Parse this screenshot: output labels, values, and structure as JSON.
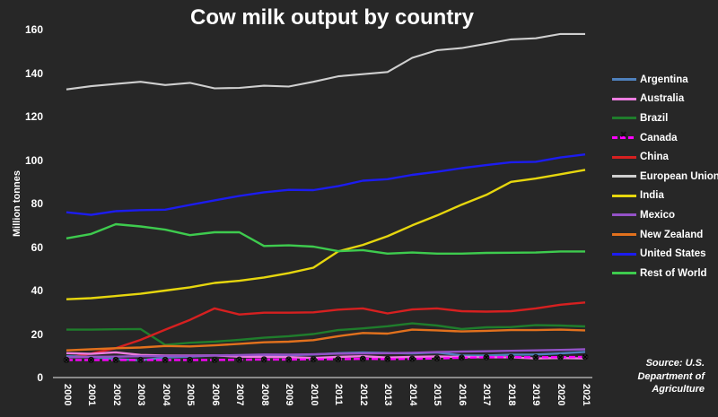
{
  "title": "Cow milk output by country",
  "source": {
    "line1": "Source: U.S.",
    "line2": "Department of",
    "line3": "Agriculture"
  },
  "colors": {
    "background": "#272727",
    "text": "#ffffff",
    "axis_line": "#8a8a8a"
  },
  "chart_data": {
    "type": "line",
    "title": "Cow milk output by country",
    "xlabel": "",
    "ylabel": "Million tonnes",
    "ylim": [
      0,
      160
    ],
    "ytick_step": 20,
    "grid": false,
    "legend_position": "right",
    "x": [
      2000,
      2001,
      2002,
      2003,
      2004,
      2005,
      2006,
      2007,
      2008,
      2009,
      2010,
      2011,
      2012,
      2013,
      2014,
      2015,
      2016,
      2017,
      2018,
      2019,
      2020,
      2021
    ],
    "series": [
      {
        "name": "Argentina",
        "color": "#4f81bd",
        "style": "solid",
        "values": [
          9.8,
          9.5,
          8.5,
          7.9,
          9.2,
          9.6,
          10.2,
          9.6,
          10.0,
          10.3,
          10.6,
          11.2,
          11.5,
          11.3,
          11.1,
          11.5,
          10.2,
          10.1,
          10.5,
          10.6,
          11.1,
          11.8
        ]
      },
      {
        "name": "Australia",
        "color": "#ec7de0",
        "style": "solid",
        "values": [
          11.2,
          10.9,
          11.6,
          10.4,
          10.1,
          10.1,
          10.2,
          9.6,
          9.5,
          9.4,
          9.0,
          9.5,
          9.8,
          9.2,
          9.5,
          9.7,
          9.5,
          9.3,
          9.3,
          8.8,
          9.0,
          8.8
        ]
      },
      {
        "name": "Brazil",
        "color": "#1f7d2c",
        "style": "solid",
        "values": [
          22.0,
          22.0,
          22.2,
          22.3,
          15.0,
          16.0,
          16.5,
          17.3,
          18.3,
          19.0,
          20.0,
          21.8,
          22.6,
          23.6,
          24.9,
          23.9,
          22.3,
          23.1,
          23.2,
          24.1,
          23.9,
          23.5
        ]
      },
      {
        "name": "Canada",
        "color": "#ff00ff",
        "style": "dashed-x",
        "values": [
          8.1,
          8.1,
          8.1,
          8.1,
          8.1,
          8.1,
          8.1,
          8.2,
          8.3,
          8.3,
          8.4,
          8.4,
          8.6,
          8.5,
          8.6,
          8.8,
          9.1,
          9.3,
          9.4,
          9.3,
          9.4,
          9.5
        ]
      },
      {
        "name": "China",
        "color": "#d62020",
        "style": "solid",
        "values": [
          9.0,
          11.0,
          13.5,
          17.3,
          22.0,
          26.5,
          31.8,
          29.0,
          29.8,
          29.8,
          30.0,
          31.2,
          31.8,
          29.5,
          31.3,
          31.8,
          30.5,
          30.3,
          30.5,
          31.8,
          33.5,
          34.5
        ]
      },
      {
        "name": "European Union",
        "color": "#cfcfcf",
        "style": "solid",
        "values": [
          132.5,
          134.0,
          135.0,
          136.0,
          134.5,
          135.5,
          133.0,
          133.2,
          134.2,
          133.8,
          136.0,
          138.5,
          139.5,
          140.5,
          147.0,
          150.5,
          151.5,
          153.5,
          155.5,
          156.0,
          158.0,
          158.0
        ]
      },
      {
        "name": "India",
        "color": "#e6d60e",
        "style": "solid",
        "values": [
          36.0,
          36.5,
          37.5,
          38.5,
          40.0,
          41.5,
          43.5,
          44.5,
          46.0,
          48.0,
          50.5,
          58.0,
          61.0,
          65.0,
          70.0,
          74.5,
          79.5,
          84.0,
          90.0,
          91.5,
          93.5,
          95.5
        ]
      },
      {
        "name": "Mexico",
        "color": "#9452c8",
        "style": "solid",
        "values": [
          9.3,
          9.5,
          9.6,
          9.8,
          9.9,
          10.0,
          10.2,
          10.3,
          10.6,
          10.5,
          10.7,
          11.0,
          11.1,
          11.2,
          11.4,
          11.7,
          11.9,
          12.1,
          12.3,
          12.5,
          12.7,
          13.0
        ]
      },
      {
        "name": "New Zealand",
        "color": "#e2711d",
        "style": "solid",
        "values": [
          12.5,
          13.0,
          13.5,
          13.8,
          14.5,
          14.3,
          14.8,
          15.5,
          16.2,
          16.5,
          17.2,
          19.0,
          20.5,
          20.2,
          22.0,
          21.7,
          21.2,
          21.5,
          21.8,
          21.8,
          22.0,
          21.7
        ]
      },
      {
        "name": "United States",
        "color": "#1c1cf0",
        "style": "solid",
        "values": [
          76.0,
          74.8,
          76.5,
          77.0,
          77.2,
          79.4,
          81.5,
          83.5,
          85.2,
          86.3,
          86.2,
          88.0,
          90.5,
          91.2,
          93.2,
          94.6,
          96.3,
          97.7,
          99.0,
          99.2,
          101.2,
          102.6
        ]
      },
      {
        "name": "Rest of World",
        "color": "#3ecb4e",
        "style": "solid",
        "values": [
          64.0,
          66.0,
          70.5,
          69.5,
          68.0,
          65.5,
          66.8,
          66.8,
          60.5,
          60.8,
          60.2,
          58.1,
          58.6,
          57.0,
          57.5,
          57.0,
          57.0,
          57.3,
          57.4,
          57.5,
          58.0,
          58.0
        ]
      }
    ]
  }
}
